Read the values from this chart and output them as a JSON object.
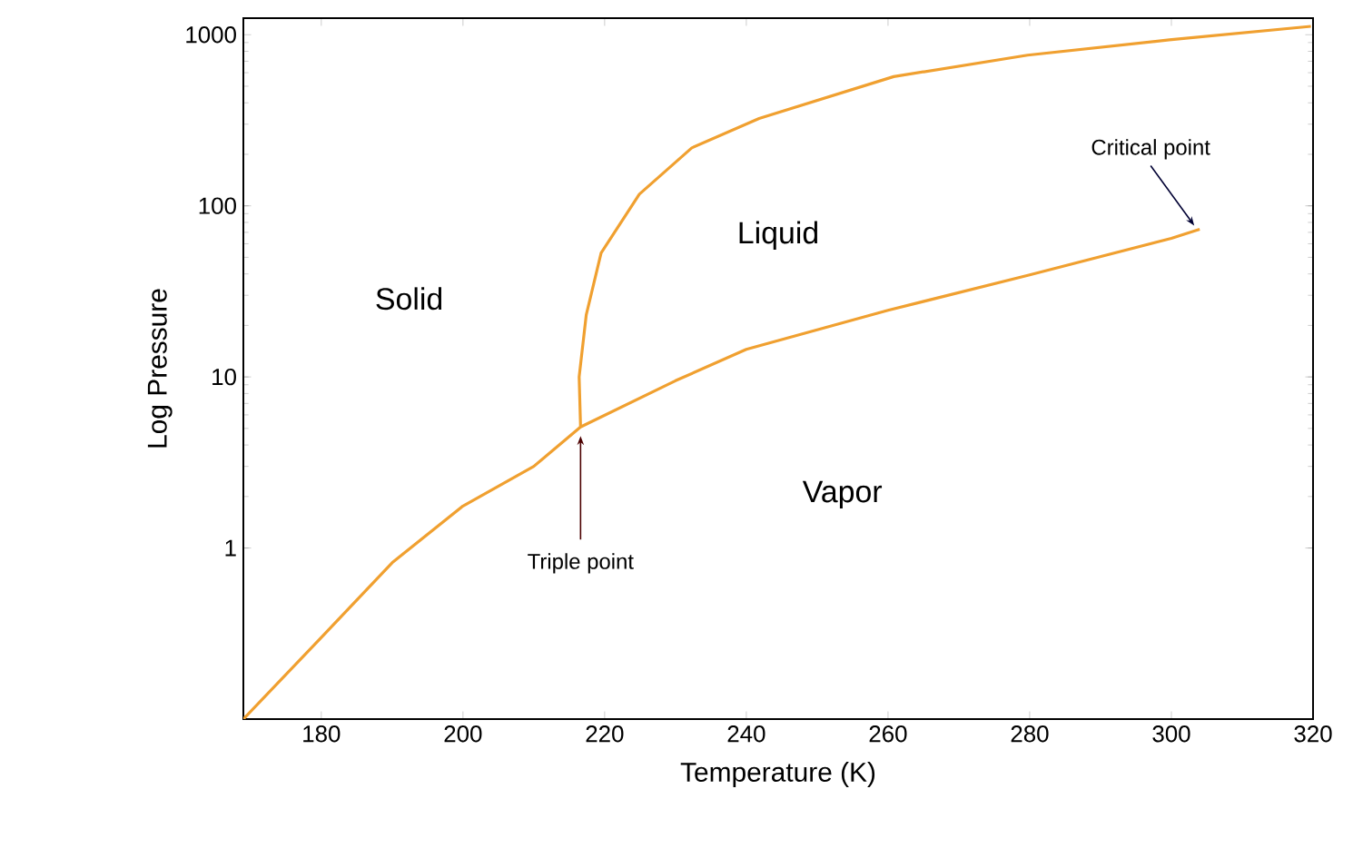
{
  "chart_data": {
    "type": "line",
    "xlabel": "Temperature (K)",
    "ylabel": "Log Pressure",
    "xlim": [
      169,
      320
    ],
    "xticks": [
      180,
      200,
      220,
      240,
      260,
      280,
      300,
      320
    ],
    "ylim": [
      0.1,
      1250
    ],
    "yticks": [
      1,
      10,
      100,
      1000
    ],
    "log": "y",
    "grid": false,
    "marker": "none",
    "line_style": "solid",
    "series": [
      {
        "color": "#f0a030",
        "x": [
          169,
          180,
          190,
          200,
          210,
          216.6,
          230,
          240,
          260,
          280,
          300,
          304
        ],
        "values": [
          0.1,
          0.3,
          0.82,
          1.76,
          3.0,
          5.1,
          9.5,
          14.5,
          24.5,
          39.5,
          64.5,
          73
        ]
      },
      {
        "color": "#f0a030",
        "x": [
          216.6,
          216.4,
          217.4,
          219.5,
          224.9,
          232.3,
          241.8,
          260.8,
          279.7,
          299.7,
          319.7
        ],
        "values": [
          5.1,
          10,
          23,
          53,
          117,
          218,
          324,
          569,
          760,
          933,
          1120
        ]
      }
    ],
    "annotations": [
      "Solid",
      "Liquid",
      "Vapor",
      {
        "text": "Triple point",
        "x": 216.6,
        "y": 5.1
      },
      {
        "text": "Critical point",
        "x": 304,
        "y": 73
      }
    ]
  }
}
